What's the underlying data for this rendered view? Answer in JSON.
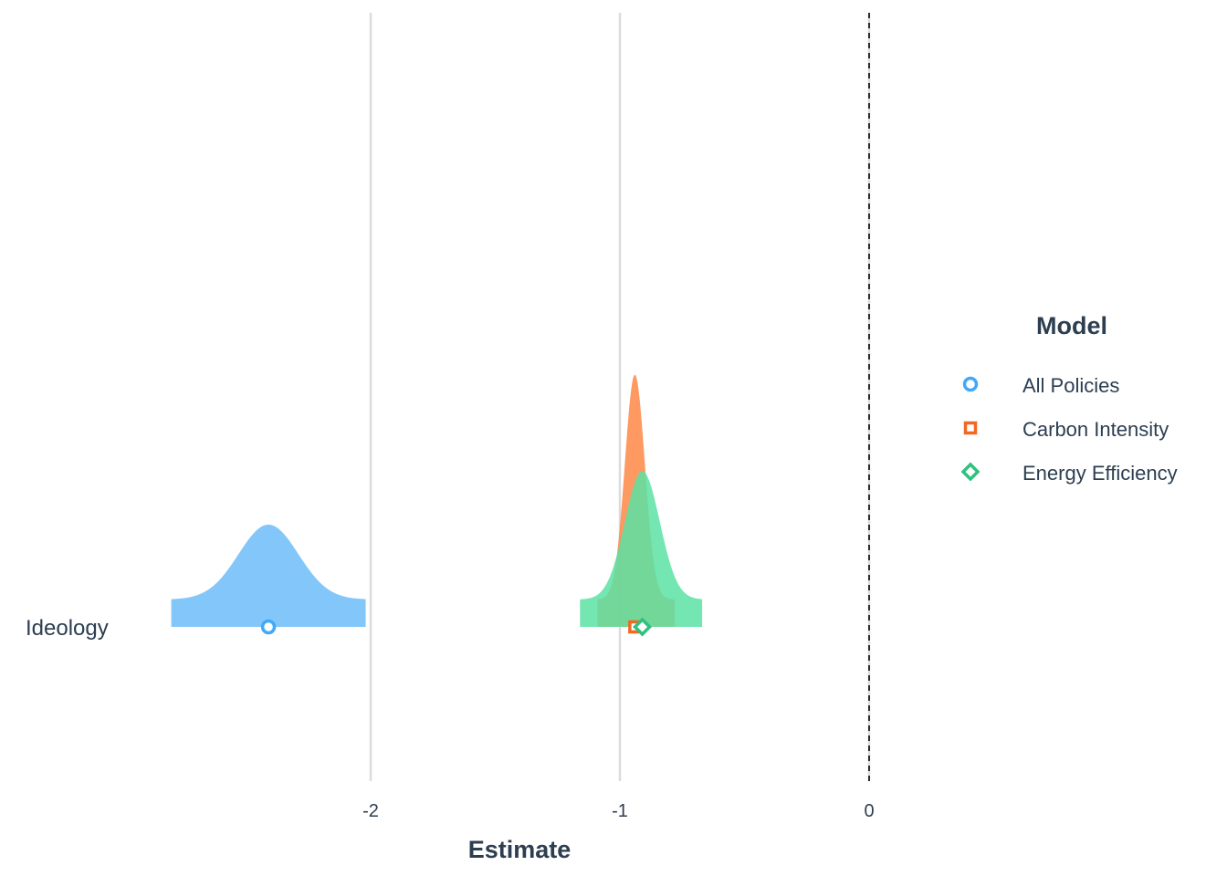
{
  "chart_data": {
    "type": "coefficient-density",
    "xlabel": "Estimate",
    "ylabel": "",
    "xlim": [
      -2.93,
      0.0
    ],
    "x_ticks": [
      -2,
      -1,
      0
    ],
    "x_tick_labels": [
      "-2",
      "-1",
      "0"
    ],
    "grid": "vertical major lines",
    "reference_line": {
      "x": 0,
      "style": "dashed",
      "color": "#000000"
    },
    "categories": [
      "Ideology"
    ],
    "legend": {
      "title": "Model",
      "placement": "right"
    },
    "series": [
      {
        "name": "All Policies",
        "color": "#44a8f8",
        "fill": "#6dbdf9",
        "shape": "circle",
        "estimate": -2.41,
        "sd": 0.12,
        "ci_low": -2.8,
        "ci_high": -2.02
      },
      {
        "name": "Carbon Intensity",
        "color": "#f26822",
        "fill": "#fd8b4b",
        "shape": "square",
        "estimate": -0.94,
        "sd": 0.04,
        "ci_low": -1.09,
        "ci_high": -0.78
      },
      {
        "name": "Energy Efficiency",
        "color": "#2ec27e",
        "fill": "#5be2a4",
        "shape": "diamond",
        "estimate": -0.91,
        "sd": 0.07,
        "ci_low": -1.16,
        "ci_high": -0.67
      }
    ]
  }
}
